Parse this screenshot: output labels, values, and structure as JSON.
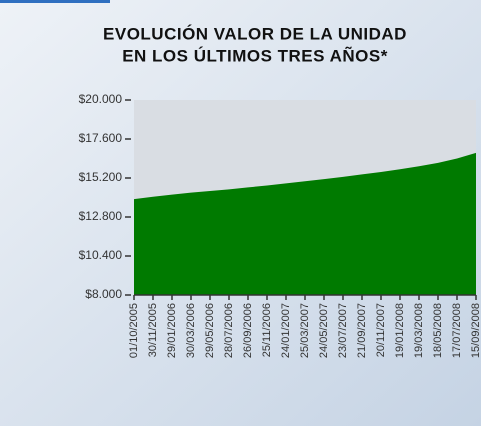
{
  "chart_data": {
    "type": "area",
    "title": [
      "EVOLUCIÓN VALOR DE LA UNIDAD",
      "EN LOS ÚLTIMOS TRES AÑOS*"
    ],
    "categories": [
      "01/10/2005",
      "30/11/2005",
      "29/01/2006",
      "30/03/2006",
      "29/05/2006",
      "28/07/2006",
      "26/09/2006",
      "25/11/2006",
      "24/01/2007",
      "25/03/2007",
      "24/05/2007",
      "23/07/2007",
      "21/09/2007",
      "20/11/2007",
      "19/01/2008",
      "19/03/2008",
      "18/05/2008",
      "17/07/2008",
      "15/09/2008"
    ],
    "values": [
      13900,
      14050,
      14180,
      14300,
      14400,
      14500,
      14620,
      14740,
      14870,
      15000,
      15130,
      15270,
      15420,
      15570,
      15740,
      15920,
      16130,
      16400,
      16750
    ],
    "color": "#007a00",
    "ylim": [
      8000,
      20000
    ],
    "yticks": [
      {
        "value": 8000,
        "label": "$8.000"
      },
      {
        "value": 10400,
        "label": "$10.400"
      },
      {
        "value": 12800,
        "label": "$12.800"
      },
      {
        "value": 15200,
        "label": "$15.200"
      },
      {
        "value": 17600,
        "label": "$17.600"
      },
      {
        "value": 20000,
        "label": "$20.000"
      }
    ]
  }
}
